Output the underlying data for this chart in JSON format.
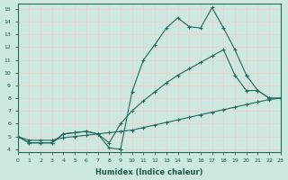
{
  "xlabel": "Humidex (Indice chaleur)",
  "xlim": [
    0,
    23
  ],
  "ylim": [
    3.8,
    15.4
  ],
  "yticks": [
    4,
    5,
    6,
    7,
    8,
    9,
    10,
    11,
    12,
    13,
    14,
    15
  ],
  "xticks": [
    0,
    1,
    2,
    3,
    4,
    5,
    6,
    7,
    8,
    9,
    10,
    11,
    12,
    13,
    14,
    15,
    16,
    17,
    18,
    19,
    20,
    21,
    22,
    23
  ],
  "bg_color": "#cce8e0",
  "grid_color": "#f5cccc",
  "line_color": "#1e6b5e",
  "line1_x": [
    0,
    1,
    2,
    3,
    4,
    5,
    6,
    7,
    8,
    9,
    10,
    11,
    12,
    13,
    14,
    15,
    16,
    17,
    18,
    19,
    20,
    21,
    22,
    23
  ],
  "line1_y": [
    5.0,
    4.5,
    4.5,
    4.5,
    5.2,
    5.3,
    5.4,
    5.2,
    4.1,
    4.0,
    8.5,
    11.0,
    12.2,
    13.5,
    14.3,
    13.6,
    13.5,
    15.1,
    13.5,
    11.8,
    9.8,
    8.6,
    8.0,
    8.0
  ],
  "line2_x": [
    0,
    1,
    2,
    3,
    4,
    5,
    6,
    7,
    8,
    9,
    10,
    11,
    12,
    13,
    14,
    15,
    16,
    17,
    18,
    19,
    20,
    21,
    22,
    23
  ],
  "line2_y": [
    5.0,
    4.5,
    4.5,
    4.5,
    5.2,
    5.3,
    5.4,
    5.2,
    4.5,
    6.0,
    7.0,
    7.8,
    8.5,
    9.2,
    9.8,
    10.3,
    10.8,
    11.3,
    11.8,
    9.8,
    8.6,
    8.6,
    8.0,
    8.0
  ],
  "line3_x": [
    0,
    1,
    2,
    3,
    4,
    5,
    6,
    7,
    8,
    9,
    10,
    11,
    12,
    13,
    14,
    15,
    16,
    17,
    18,
    19,
    20,
    21,
    22,
    23
  ],
  "line3_y": [
    5.0,
    4.7,
    4.7,
    4.7,
    4.9,
    5.0,
    5.1,
    5.2,
    5.3,
    5.4,
    5.5,
    5.7,
    5.9,
    6.1,
    6.3,
    6.5,
    6.7,
    6.9,
    7.1,
    7.3,
    7.5,
    7.7,
    7.9,
    8.0
  ]
}
